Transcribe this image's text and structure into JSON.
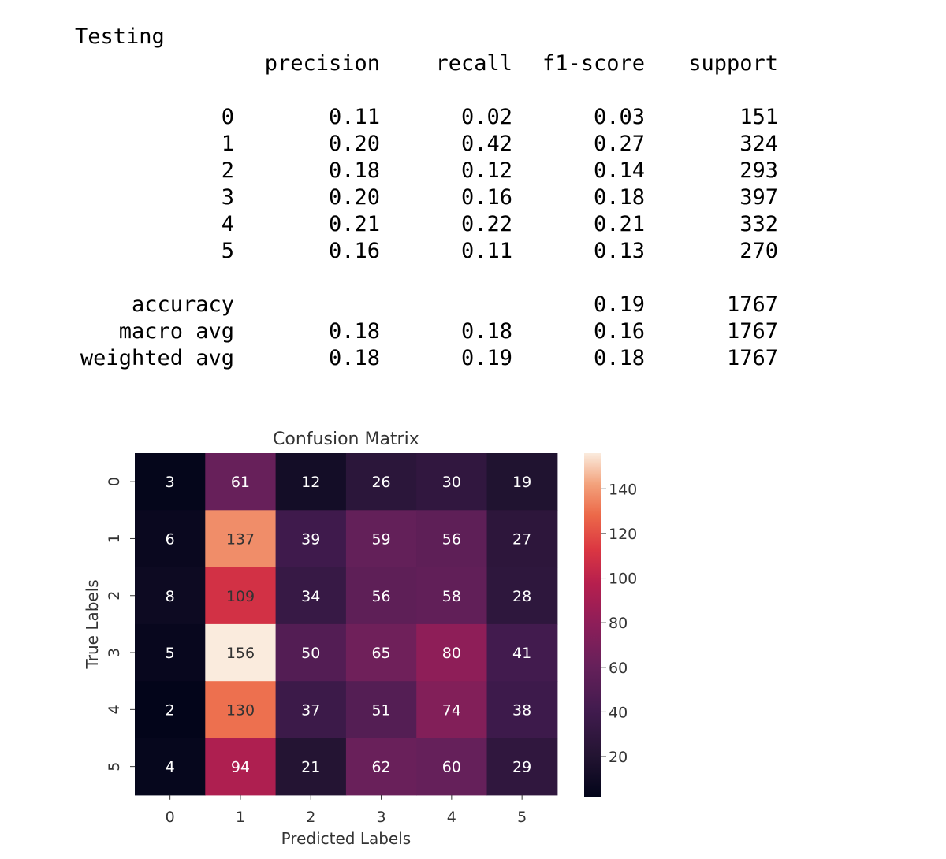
{
  "report": {
    "heading": "Testing",
    "columns": [
      "precision",
      "recall",
      "f1-score",
      "support"
    ],
    "rows": [
      {
        "label": "0",
        "precision": "0.11",
        "recall": "0.02",
        "f1": "0.03",
        "support": "151"
      },
      {
        "label": "1",
        "precision": "0.20",
        "recall": "0.42",
        "f1": "0.27",
        "support": "324"
      },
      {
        "label": "2",
        "precision": "0.18",
        "recall": "0.12",
        "f1": "0.14",
        "support": "293"
      },
      {
        "label": "3",
        "precision": "0.20",
        "recall": "0.16",
        "f1": "0.18",
        "support": "397"
      },
      {
        "label": "4",
        "precision": "0.21",
        "recall": "0.22",
        "f1": "0.21",
        "support": "332"
      },
      {
        "label": "5",
        "precision": "0.16",
        "recall": "0.11",
        "f1": "0.13",
        "support": "270"
      }
    ],
    "summary": [
      {
        "label": "accuracy",
        "precision": "",
        "recall": "",
        "f1": "0.19",
        "support": "1767"
      },
      {
        "label": "macro avg",
        "precision": "0.18",
        "recall": "0.18",
        "f1": "0.16",
        "support": "1767"
      },
      {
        "label": "weighted avg",
        "precision": "0.18",
        "recall": "0.19",
        "f1": "0.18",
        "support": "1767"
      }
    ]
  },
  "chart_data": {
    "type": "heatmap",
    "title": "Confusion Matrix",
    "xlabel": "Predicted Labels",
    "ylabel": "True Labels",
    "x_categories": [
      "0",
      "1",
      "2",
      "3",
      "4",
      "5"
    ],
    "y_categories": [
      "0",
      "1",
      "2",
      "3",
      "4",
      "5"
    ],
    "values": [
      [
        3,
        61,
        12,
        26,
        30,
        19
      ],
      [
        6,
        137,
        39,
        59,
        56,
        27
      ],
      [
        8,
        109,
        34,
        56,
        58,
        28
      ],
      [
        5,
        156,
        50,
        65,
        80,
        41
      ],
      [
        2,
        130,
        37,
        51,
        74,
        38
      ],
      [
        4,
        94,
        21,
        62,
        60,
        29
      ]
    ],
    "colorbar": {
      "min": 2,
      "max": 156,
      "ticks": [
        20,
        40,
        60,
        80,
        100,
        120,
        140
      ]
    },
    "colormap": "rocket"
  }
}
